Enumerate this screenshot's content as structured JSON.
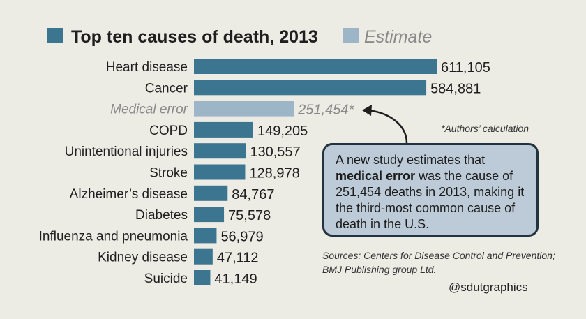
{
  "chart_data": {
    "type": "bar",
    "orientation": "horizontal",
    "title": "Top ten causes of death, 2013",
    "legend": [
      {
        "label": "Top ten causes of death, 2013",
        "color": "#3b7590"
      },
      {
        "label": "Estimate",
        "color": "#9cb6c8"
      }
    ],
    "categories": [
      "Heart disease",
      "Cancer",
      "Medical error",
      "COPD",
      "Unintentional injuries",
      "Stroke",
      "Alzheimer’s disease",
      "Diabetes",
      "Influenza and pneumonia",
      "Kidney disease",
      "Suicide"
    ],
    "values": [
      611105,
      584881,
      251454,
      149205,
      130557,
      128978,
      84767,
      75578,
      56979,
      47112,
      41149
    ],
    "value_labels": [
      "611,105",
      "584,881",
      "251,454*",
      "149,205",
      "130,557",
      "128,978",
      "84,767",
      "75,578",
      "56,979",
      "47,112",
      "41,149"
    ],
    "estimate_flags": [
      false,
      false,
      true,
      false,
      false,
      false,
      false,
      false,
      false,
      false,
      false
    ],
    "xlim": [
      0,
      611105
    ],
    "grid": false,
    "colors": {
      "bar": "#3b7590",
      "estimate": "#9cb6c8",
      "estimate_text": "#8a8a8a"
    }
  },
  "annotations": {
    "footnote": "*Authors’ calculation",
    "callout": {
      "before": "A new study estimates that ",
      "highlight": "medical error",
      "after": " was the cause of 251,454 deaths in 2013, making it the third-most common cause of death in the U.S."
    },
    "sources": "Sources: Centers for Disease Control and Prevention; BMJ Publishing group Ltd.",
    "credit": "@sdutgraphics"
  }
}
